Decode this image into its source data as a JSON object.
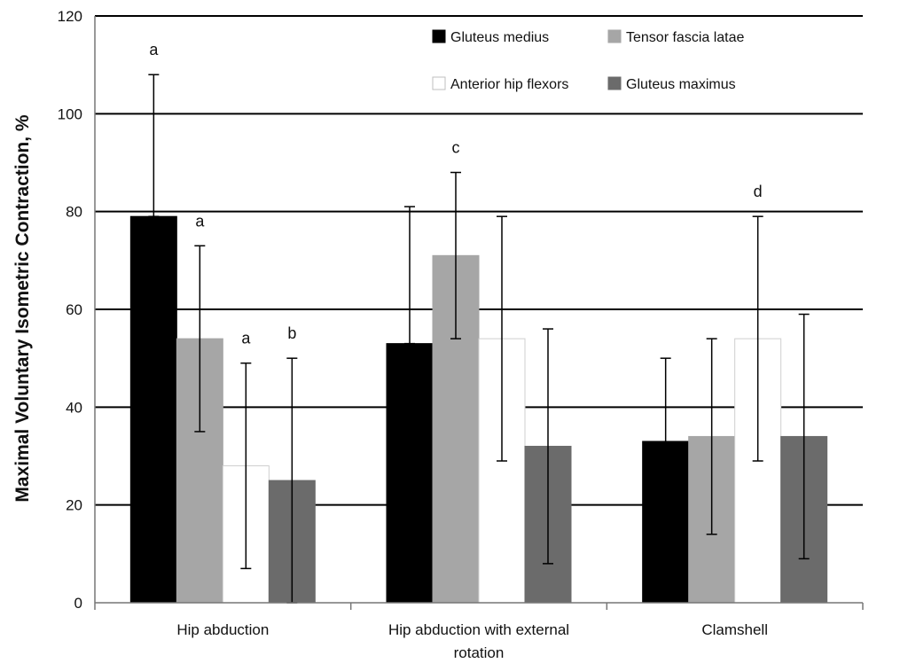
{
  "chart_data": {
    "type": "bar",
    "title": "",
    "xlabel": "",
    "ylabel": "Maximal Voluntary Isometric Contraction, %",
    "ylim": [
      0,
      120
    ],
    "yticks": [
      "0",
      "20",
      "40",
      "60",
      "80",
      "100",
      "120"
    ],
    "grid": true,
    "legend_position": "top-right",
    "categories": [
      [
        "Hip abduction"
      ],
      [
        "Hip abduction with external",
        "rotation"
      ],
      [
        "Clamshell"
      ]
    ],
    "series": [
      {
        "name": "Gluteus medius",
        "color": "#000000",
        "values": [
          79,
          53,
          33
        ],
        "error_low": [
          79,
          53,
          17
        ],
        "error_high": [
          108,
          81,
          50
        ],
        "annotations": [
          "a",
          "",
          ""
        ]
      },
      {
        "name": "Tensor fascia latae",
        "color": "#a6a6a6",
        "values": [
          54,
          71,
          34
        ],
        "error_low": [
          35,
          54,
          14
        ],
        "error_high": [
          73,
          88,
          54
        ],
        "annotations": [
          "a",
          "c",
          ""
        ]
      },
      {
        "name": "Anterior hip flexors",
        "color": "#ffffff",
        "values": [
          28,
          54,
          54
        ],
        "error_low": [
          7,
          29,
          29
        ],
        "error_high": [
          49,
          79,
          79
        ],
        "annotations": [
          "a",
          "",
          "d"
        ]
      },
      {
        "name": "Gluteus maximus",
        "color": "#6b6b6b",
        "values": [
          25,
          32,
          34
        ],
        "error_low": [
          0,
          8,
          9
        ],
        "error_high": [
          50,
          56,
          59
        ],
        "annotations": [
          "b",
          "",
          ""
        ]
      }
    ]
  }
}
